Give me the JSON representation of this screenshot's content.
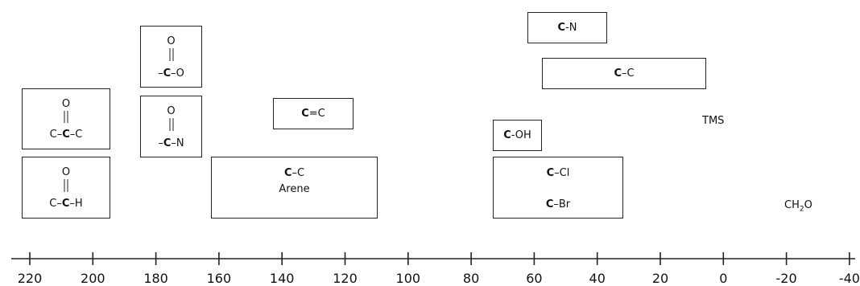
{
  "axis": {
    "ticks": [
      "220",
      "200",
      "180",
      "160",
      "140",
      "120",
      "100",
      "80",
      "60",
      "40",
      "20",
      "0",
      "-20",
      "-40"
    ]
  },
  "regions": {
    "ketone": {
      "o": "O",
      "left": "C",
      "sep1": "–",
      "center": "C",
      "sep2": "–",
      "right": "C"
    },
    "aldehyde": {
      "o": "O",
      "left": "C",
      "sep1": "–",
      "center": "C",
      "sep2": "–",
      "right": "H"
    },
    "ester": {
      "o": "O",
      "lead": "–",
      "center": "C",
      "sep": "–",
      "right": "O"
    },
    "amide": {
      "o": "O",
      "lead": "–",
      "center": "C",
      "sep": "–",
      "right": "N"
    },
    "alkene": {
      "bold": "C",
      "rest": "=C"
    },
    "arene": {
      "bold": "C",
      "rest": "–C",
      "line2": "Arene"
    },
    "c_n": {
      "bold": "C",
      "rest": "-N"
    },
    "c_c": {
      "bold": "C",
      "rest": "–C"
    },
    "c_oh": {
      "bold": "C",
      "rest": "-OH"
    },
    "c_cl": {
      "bold": "C",
      "rest": "–Cl"
    },
    "c_br": {
      "bold": "C",
      "rest": "–Br"
    }
  },
  "labels": {
    "tms": "TMS",
    "ch2o_pre": "CH",
    "ch2o_sub": "2",
    "ch2o_post": "O"
  }
}
